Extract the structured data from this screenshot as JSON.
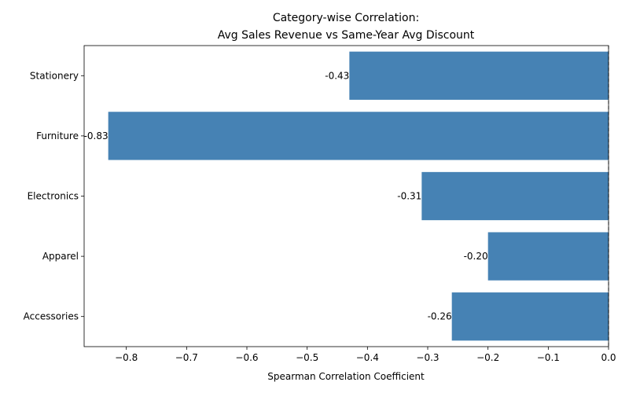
{
  "chart_data": {
    "type": "bar",
    "orientation": "horizontal",
    "title_lines": [
      "Category-wise Correlation:",
      "Avg Sales Revenue vs Same-Year Avg Discount"
    ],
    "xlabel": "Spearman Correlation Coefficient",
    "ylabel": "",
    "categories": [
      "Accessories",
      "Apparel",
      "Electronics",
      "Furniture",
      "Stationery"
    ],
    "values": [
      -0.26,
      -0.2,
      -0.31,
      -0.83,
      -0.43
    ],
    "data_labels": [
      "-0.26",
      "-0.20",
      "-0.31",
      "-0.83",
      "-0.43"
    ],
    "xlim": [
      -0.87,
      0.0
    ],
    "xticks": [
      -0.8,
      -0.7,
      -0.6,
      -0.5,
      -0.4,
      -0.3,
      -0.2,
      -0.1,
      0.0
    ],
    "xtick_labels": [
      "−0.8",
      "−0.7",
      "−0.6",
      "−0.5",
      "−0.4",
      "−0.3",
      "−0.2",
      "−0.1",
      "0.0"
    ],
    "bar_color": "#4682b4",
    "grid": false,
    "legend": "none"
  }
}
